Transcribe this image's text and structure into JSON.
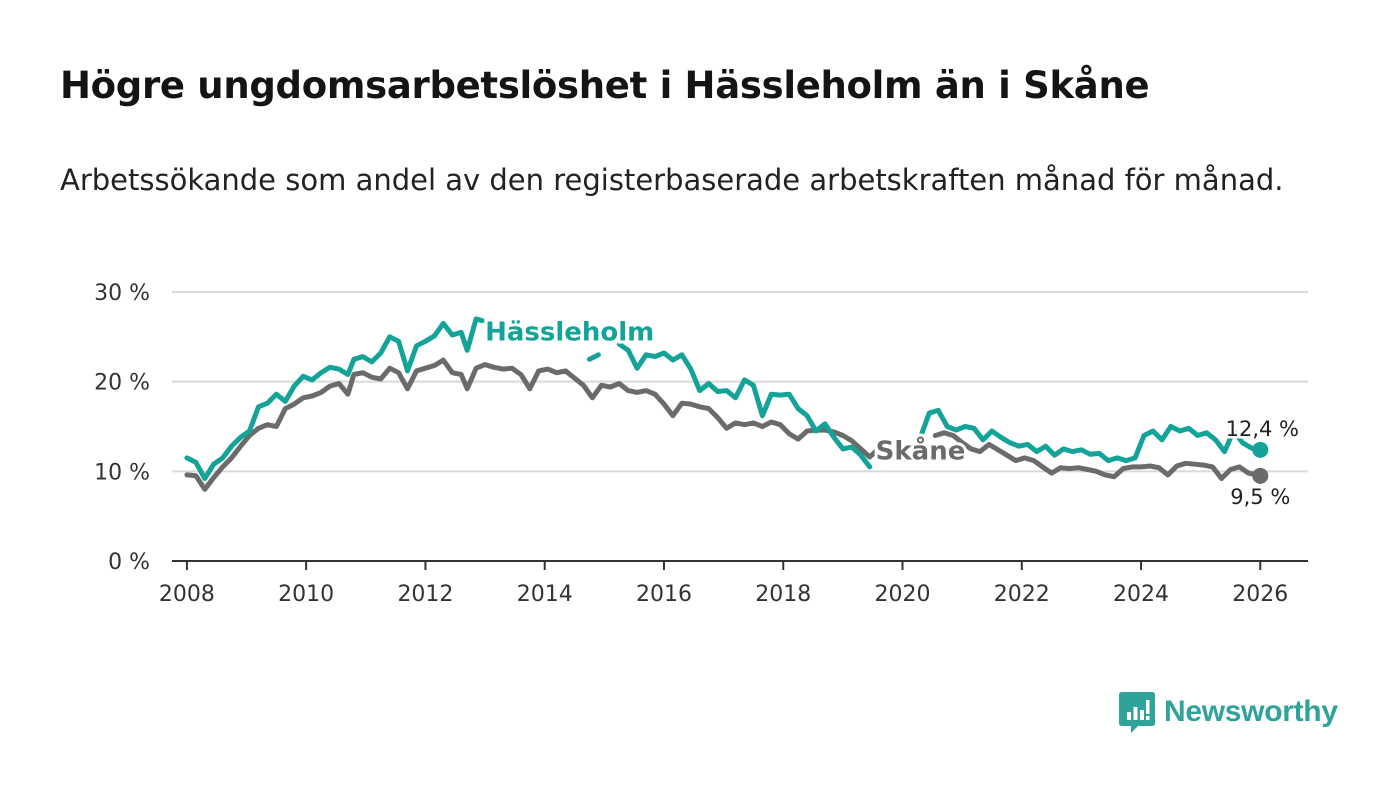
{
  "title": "Högre ungdomsarbetslöshet i Hässleholm än i Skåne",
  "subtitle": "Arbetssökande som andel av den registerbaserade arbetskraften månad för månad.",
  "brand": {
    "name": "Newsworthy",
    "icon": "newsworthy-logo-icon"
  },
  "colors": {
    "hassleholm": "#13a398",
    "skane": "#6b6b6b",
    "grid": "#d9d9d9",
    "axis": "#333333"
  },
  "chart_data": {
    "type": "line",
    "title": "Högre ungdomsarbetslöshet i Hässleholm än i Skåne",
    "xlabel": "",
    "ylabel": "",
    "xlim": [
      2007.75,
      2026.8
    ],
    "ylim": [
      0,
      30
    ],
    "xticks": [
      2008,
      2010,
      2012,
      2014,
      2016,
      2018,
      2020,
      2022,
      2024,
      2026
    ],
    "yticks": [
      0,
      10,
      20,
      30
    ],
    "ytick_labels": [
      "0 %",
      "10 %",
      "20 %",
      "30 %"
    ],
    "grid": true,
    "series": [
      {
        "name": "Hässleholm",
        "label": "Hässleholm",
        "end_label": "12,4 %",
        "points": [
          [
            2008.0,
            11.5
          ],
          [
            2008.15,
            11.0
          ],
          [
            2008.3,
            9.2
          ],
          [
            2008.45,
            10.8
          ],
          [
            2008.6,
            11.5
          ],
          [
            2008.75,
            12.8
          ],
          [
            2008.9,
            13.8
          ],
          [
            2009.05,
            14.5
          ],
          [
            2009.2,
            17.2
          ],
          [
            2009.35,
            17.6
          ],
          [
            2009.5,
            18.6
          ],
          [
            2009.65,
            17.8
          ],
          [
            2009.8,
            19.5
          ],
          [
            2009.95,
            20.6
          ],
          [
            2010.1,
            20.2
          ],
          [
            2010.25,
            21.0
          ],
          [
            2010.4,
            21.6
          ],
          [
            2010.55,
            21.4
          ],
          [
            2010.7,
            20.8
          ],
          [
            2010.8,
            22.5
          ],
          [
            2010.95,
            22.8
          ],
          [
            2011.1,
            22.2
          ],
          [
            2011.25,
            23.2
          ],
          [
            2011.4,
            25.0
          ],
          [
            2011.55,
            24.5
          ],
          [
            2011.7,
            21.2
          ],
          [
            2011.85,
            24.0
          ],
          [
            2012.0,
            24.5
          ],
          [
            2012.15,
            25.1
          ],
          [
            2012.3,
            26.5
          ],
          [
            2012.45,
            25.2
          ],
          [
            2012.6,
            25.5
          ],
          [
            2012.7,
            23.5
          ],
          [
            2012.85,
            27.0
          ],
          [
            2012.95,
            26.8
          ]
        ],
        "points_after_label": [
          [
            2014.75,
            22.5
          ],
          [
            2014.9,
            23.0
          ]
        ],
        "points_tail": [
          [
            2015.25,
            24.2
          ],
          [
            2015.4,
            23.5
          ],
          [
            2015.55,
            21.5
          ],
          [
            2015.7,
            23.0
          ],
          [
            2015.85,
            22.8
          ],
          [
            2016.0,
            23.2
          ],
          [
            2016.15,
            22.4
          ],
          [
            2016.3,
            23.0
          ],
          [
            2016.45,
            21.4
          ],
          [
            2016.6,
            19.0
          ],
          [
            2016.75,
            19.8
          ],
          [
            2016.9,
            18.9
          ],
          [
            2017.05,
            19.0
          ],
          [
            2017.2,
            18.2
          ],
          [
            2017.35,
            20.2
          ],
          [
            2017.5,
            19.6
          ],
          [
            2017.65,
            16.2
          ],
          [
            2017.8,
            18.6
          ],
          [
            2017.95,
            18.5
          ],
          [
            2018.1,
            18.6
          ],
          [
            2018.25,
            17.0
          ],
          [
            2018.4,
            16.2
          ],
          [
            2018.55,
            14.5
          ],
          [
            2018.7,
            15.3
          ],
          [
            2018.85,
            13.8
          ],
          [
            2019.0,
            12.5
          ],
          [
            2019.15,
            12.7
          ],
          [
            2019.3,
            11.8
          ],
          [
            2019.45,
            10.5
          ]
        ],
        "points_late": [
          [
            2020.3,
            13.8
          ],
          [
            2020.45,
            16.5
          ],
          [
            2020.6,
            16.8
          ],
          [
            2020.75,
            15.0
          ],
          [
            2020.9,
            14.6
          ],
          [
            2021.05,
            15.0
          ],
          [
            2021.2,
            14.8
          ],
          [
            2021.35,
            13.5
          ],
          [
            2021.5,
            14.5
          ],
          [
            2021.65,
            13.8
          ],
          [
            2021.8,
            13.2
          ],
          [
            2021.95,
            12.8
          ],
          [
            2022.1,
            13.0
          ],
          [
            2022.25,
            12.2
          ],
          [
            2022.4,
            12.8
          ],
          [
            2022.55,
            11.8
          ],
          [
            2022.7,
            12.5
          ],
          [
            2022.85,
            12.2
          ],
          [
            2023.0,
            12.4
          ],
          [
            2023.15,
            11.9
          ],
          [
            2023.3,
            12.0
          ],
          [
            2023.45,
            11.2
          ],
          [
            2023.6,
            11.5
          ],
          [
            2023.75,
            11.2
          ],
          [
            2023.9,
            11.5
          ],
          [
            2024.05,
            14.0
          ],
          [
            2024.2,
            14.5
          ],
          [
            2024.35,
            13.5
          ],
          [
            2024.5,
            15.0
          ],
          [
            2024.65,
            14.5
          ],
          [
            2024.8,
            14.8
          ],
          [
            2024.95,
            14.0
          ],
          [
            2025.1,
            14.3
          ],
          [
            2025.25,
            13.5
          ],
          [
            2025.4,
            12.2
          ],
          [
            2025.55,
            14.5
          ],
          [
            2025.7,
            13.2
          ],
          [
            2025.85,
            12.6
          ],
          [
            2026.0,
            12.4
          ]
        ]
      },
      {
        "name": "Skåne",
        "label": "Skåne",
        "end_label": "9,5 %",
        "points_head": [
          [
            2008.0,
            9.6
          ],
          [
            2008.15,
            9.5
          ],
          [
            2008.3,
            8.0
          ],
          [
            2008.45,
            9.3
          ],
          [
            2008.6,
            10.5
          ],
          [
            2008.75,
            11.5
          ],
          [
            2008.9,
            12.8
          ],
          [
            2009.05,
            14.0
          ],
          [
            2009.2,
            14.8
          ],
          [
            2009.35,
            15.2
          ],
          [
            2009.5,
            15.0
          ],
          [
            2009.65,
            17.0
          ],
          [
            2009.8,
            17.5
          ],
          [
            2009.95,
            18.2
          ],
          [
            2010.1,
            18.4
          ],
          [
            2010.25,
            18.8
          ],
          [
            2010.4,
            19.5
          ],
          [
            2010.55,
            19.8
          ],
          [
            2010.7,
            18.6
          ],
          [
            2010.8,
            20.8
          ],
          [
            2010.95,
            21.0
          ],
          [
            2011.1,
            20.5
          ],
          [
            2011.25,
            20.3
          ],
          [
            2011.4,
            21.5
          ],
          [
            2011.55,
            21.0
          ],
          [
            2011.7,
            19.2
          ],
          [
            2011.85,
            21.2
          ],
          [
            2012.0,
            21.5
          ],
          [
            2012.15,
            21.8
          ],
          [
            2012.3,
            22.4
          ],
          [
            2012.45,
            21.0
          ],
          [
            2012.6,
            20.8
          ],
          [
            2012.7,
            19.2
          ],
          [
            2012.85,
            21.5
          ],
          [
            2013.0,
            21.9
          ],
          [
            2013.15,
            21.6
          ],
          [
            2013.3,
            21.4
          ],
          [
            2013.45,
            21.5
          ],
          [
            2013.6,
            20.8
          ],
          [
            2013.75,
            19.2
          ],
          [
            2013.9,
            21.2
          ],
          [
            2014.05,
            21.4
          ],
          [
            2014.2,
            21.0
          ],
          [
            2014.35,
            21.2
          ],
          [
            2014.5,
            20.4
          ],
          [
            2014.65,
            19.6
          ],
          [
            2014.8,
            18.2
          ],
          [
            2014.95,
            19.6
          ],
          [
            2015.1,
            19.4
          ],
          [
            2015.25,
            19.8
          ],
          [
            2015.4,
            19.0
          ],
          [
            2015.55,
            18.8
          ],
          [
            2015.7,
            19.0
          ],
          [
            2015.85,
            18.6
          ],
          [
            2016.0,
            17.5
          ],
          [
            2016.15,
            16.2
          ],
          [
            2016.3,
            17.6
          ],
          [
            2016.45,
            17.5
          ],
          [
            2016.6,
            17.2
          ],
          [
            2016.75,
            17.0
          ],
          [
            2016.9,
            16.0
          ],
          [
            2017.05,
            14.8
          ],
          [
            2017.2,
            15.4
          ],
          [
            2017.35,
            15.2
          ],
          [
            2017.5,
            15.4
          ],
          [
            2017.65,
            15.0
          ],
          [
            2017.8,
            15.5
          ],
          [
            2017.95,
            15.2
          ],
          [
            2018.1,
            14.2
          ],
          [
            2018.25,
            13.6
          ],
          [
            2018.4,
            14.5
          ],
          [
            2018.55,
            14.6
          ],
          [
            2018.7,
            14.6
          ],
          [
            2018.85,
            14.4
          ],
          [
            2019.0,
            14.0
          ],
          [
            2019.15,
            13.4
          ],
          [
            2019.3,
            12.5
          ],
          [
            2019.45,
            11.6
          ],
          [
            2019.6,
            12.5
          ],
          [
            2019.75,
            12.7
          ],
          [
            2019.9,
            12.2
          ],
          [
            2020.05,
            11.8
          ],
          [
            2020.2,
            11.6
          ]
        ],
        "points_tail": [
          [
            2020.55,
            14.0
          ],
          [
            2020.7,
            14.3
          ],
          [
            2020.85,
            14.0
          ],
          [
            2021.0,
            13.2
          ],
          [
            2021.15,
            12.5
          ],
          [
            2021.3,
            12.2
          ],
          [
            2021.45,
            13.0
          ],
          [
            2021.6,
            12.4
          ],
          [
            2021.75,
            11.8
          ],
          [
            2021.9,
            11.2
          ],
          [
            2022.05,
            11.5
          ],
          [
            2022.2,
            11.2
          ],
          [
            2022.35,
            10.5
          ],
          [
            2022.5,
            9.8
          ],
          [
            2022.65,
            10.4
          ],
          [
            2022.8,
            10.3
          ],
          [
            2022.95,
            10.4
          ],
          [
            2023.1,
            10.2
          ],
          [
            2023.25,
            10.0
          ],
          [
            2023.4,
            9.6
          ],
          [
            2023.55,
            9.4
          ],
          [
            2023.7,
            10.3
          ],
          [
            2023.85,
            10.5
          ],
          [
            2024.0,
            10.5
          ],
          [
            2024.15,
            10.6
          ],
          [
            2024.3,
            10.4
          ],
          [
            2024.45,
            9.6
          ],
          [
            2024.6,
            10.6
          ],
          [
            2024.75,
            10.9
          ],
          [
            2024.9,
            10.8
          ],
          [
            2025.05,
            10.7
          ],
          [
            2025.2,
            10.5
          ],
          [
            2025.35,
            9.2
          ],
          [
            2025.5,
            10.2
          ],
          [
            2025.65,
            10.5
          ],
          [
            2025.8,
            9.8
          ],
          [
            2026.0,
            9.5
          ]
        ]
      }
    ]
  }
}
